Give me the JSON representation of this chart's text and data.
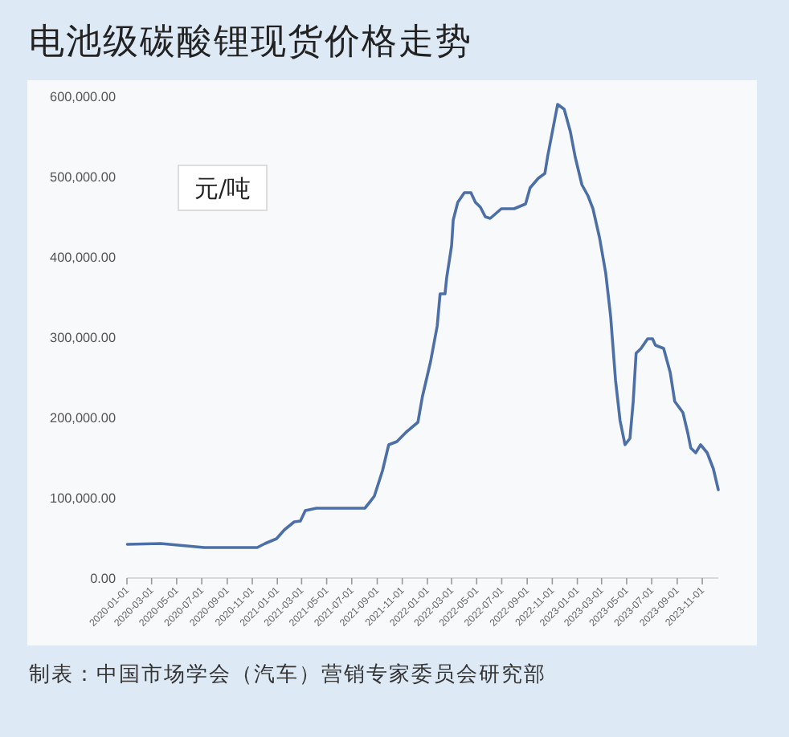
{
  "chart_data": {
    "type": "line",
    "title": "电池级碳酸锂现货价格走势",
    "ylabel": "元/吨",
    "annotations": [
      "制表：中国市场学会（汽车）营销专家委员会研究部"
    ],
    "x": [
      "2020-01-02",
      "2020-03-23",
      "2020-07-07",
      "2020-11-13",
      "2020-12-02",
      "2020-12-30",
      "2021-01-18",
      "2021-02-11",
      "2021-02-26",
      "2021-03-10",
      "2021-04-06",
      "2021-08-02",
      "2021-08-13",
      "2021-08-25",
      "2021-09-14",
      "2021-09-29",
      "2021-10-19",
      "2021-11-11",
      "2021-12-09",
      "2021-12-20",
      "2022-01-09",
      "2022-01-25",
      "2022-02-01",
      "2022-02-13",
      "2022-02-17",
      "2022-03-01",
      "2022-03-05",
      "2022-03-16",
      "2022-04-01",
      "2022-04-17",
      "2022-04-28",
      "2022-05-10",
      "2022-05-22",
      "2022-06-03",
      "2022-06-30",
      "2022-07-31",
      "2022-08-28",
      "2022-09-08",
      "2022-09-28",
      "2022-10-14",
      "2022-10-21",
      "2022-11-02",
      "2022-11-14",
      "2022-11-30",
      "2022-12-15",
      "2022-12-27",
      "2023-01-12",
      "2023-01-27",
      "2023-02-08",
      "2023-02-24",
      "2023-03-11",
      "2023-03-23",
      "2023-04-04",
      "2023-04-15",
      "2023-04-27",
      "2023-05-09",
      "2023-05-17",
      "2023-05-24",
      "2023-06-05",
      "2023-06-21",
      "2023-07-03",
      "2023-07-10",
      "2023-07-30",
      "2023-08-15",
      "2023-08-26",
      "2023-09-15",
      "2023-09-27",
      "2023-10-04",
      "2023-10-16",
      "2023-10-28",
      "2023-11-13",
      "2023-11-28",
      "2023-12-10"
    ],
    "series": [
      {
        "color": "#4b6fa6",
        "values": [
          42000,
          43000,
          38000,
          38000,
          43000,
          49000,
          60000,
          70000,
          71000,
          84000,
          87000,
          87000,
          94000,
          102000,
          134000,
          166000,
          170000,
          182000,
          194000,
          226000,
          270000,
          314000,
          354000,
          354000,
          374000,
          414000,
          446000,
          468000,
          480000,
          480000,
          468000,
          462000,
          450000,
          448000,
          460000,
          460000,
          466000,
          486000,
          498000,
          504000,
          526000,
          558000,
          590000,
          584000,
          556000,
          524000,
          490000,
          476000,
          460000,
          424000,
          380000,
          326000,
          246000,
          196000,
          166000,
          174000,
          220000,
          280000,
          286000,
          298000,
          298000,
          290000,
          286000,
          256000,
          220000,
          206000,
          180000,
          162000,
          156000,
          166000,
          156000,
          136000,
          110000
        ]
      }
    ],
    "xlim": [
      "2020-01-01",
      "2023-12-10"
    ],
    "xticks": [
      "2020-01-01",
      "2020-03-01",
      "2020-05-01",
      "2020-07-01",
      "2020-09-01",
      "2020-11-01",
      "2021-01-01",
      "2021-03-01",
      "2021-05-01",
      "2021-07-01",
      "2021-09-01",
      "2021-11-01",
      "2022-01-01",
      "2022-03-01",
      "2022-05-01",
      "2022-07-01",
      "2022-09-01",
      "2022-11-01",
      "2023-01-01",
      "2023-03-01",
      "2023-05-01",
      "2023-07-01",
      "2023-09-01",
      "2023-11-01"
    ],
    "ylim": [
      0,
      600000
    ],
    "yticks": [
      {
        "value": 0,
        "label": "0.00"
      },
      {
        "value": 100000,
        "label": "100,000.00"
      },
      {
        "value": 200000,
        "label": "200,000.00"
      },
      {
        "value": 300000,
        "label": "300,000.00"
      },
      {
        "value": 400000,
        "label": "400,000.00"
      },
      {
        "value": 500000,
        "label": "500,000.00"
      },
      {
        "value": 600000,
        "label": "600,000.00"
      }
    ]
  }
}
